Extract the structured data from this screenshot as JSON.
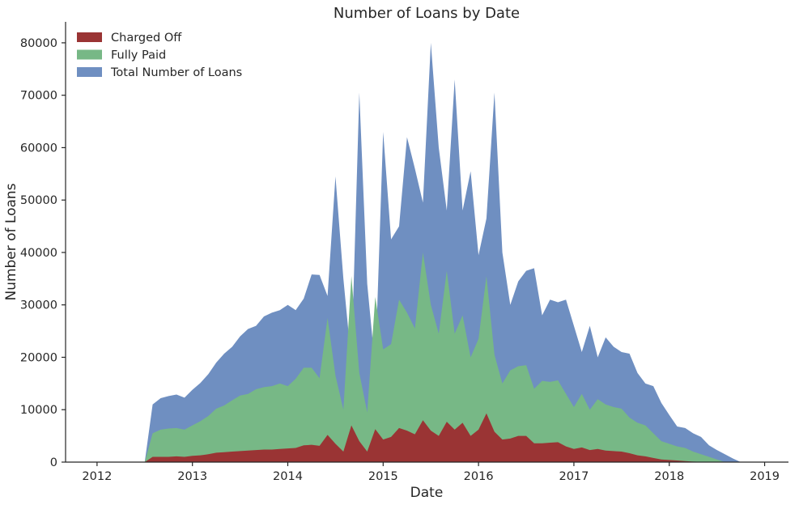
{
  "chart_data": {
    "type": "area",
    "title": "Number of Loans by Date",
    "xlabel": "Date",
    "ylabel": "Number of Loans",
    "xlim": [
      2011.67,
      2019.25
    ],
    "ylim": [
      0,
      84000
    ],
    "x_ticks": [
      "2012",
      "2013",
      "2014",
      "2015",
      "2016",
      "2017",
      "2018",
      "2019"
    ],
    "y_ticks": [
      "0",
      "10000",
      "20000",
      "30000",
      "40000",
      "50000",
      "60000",
      "70000",
      "80000"
    ],
    "grid": false,
    "legend_position": "top-left",
    "x": [
      2012.5,
      2012.583,
      2012.667,
      2012.75,
      2012.833,
      2012.917,
      2013.0,
      2013.083,
      2013.167,
      2013.25,
      2013.333,
      2013.417,
      2013.5,
      2013.583,
      2013.667,
      2013.75,
      2013.833,
      2013.917,
      2014.0,
      2014.083,
      2014.167,
      2014.25,
      2014.333,
      2014.417,
      2014.5,
      2014.583,
      2014.667,
      2014.75,
      2014.833,
      2014.917,
      2015.0,
      2015.083,
      2015.167,
      2015.25,
      2015.333,
      2015.417,
      2015.5,
      2015.583,
      2015.667,
      2015.75,
      2015.833,
      2015.917,
      2016.0,
      2016.083,
      2016.167,
      2016.25,
      2016.333,
      2016.417,
      2016.5,
      2016.583,
      2016.667,
      2016.75,
      2016.833,
      2016.917,
      2017.0,
      2017.083,
      2017.167,
      2017.25,
      2017.333,
      2017.417,
      2017.5,
      2017.583,
      2017.667,
      2017.75,
      2017.833,
      2017.917,
      2018.0,
      2018.083,
      2018.167,
      2018.25,
      2018.333,
      2018.417,
      2018.5,
      2018.583,
      2018.667,
      2018.75
    ],
    "series": [
      {
        "name": "Charged Off",
        "color": "#9a3434",
        "values": [
          0,
          1000,
          1000,
          1000,
          1100,
          1000,
          1200,
          1300,
          1500,
          1800,
          1900,
          2000,
          2100,
          2200,
          2300,
          2400,
          2400,
          2500,
          2600,
          2700,
          3200,
          3300,
          3100,
          5200,
          3500,
          2000,
          7000,
          4000,
          2000,
          6300,
          4300,
          4800,
          6500,
          6000,
          5300,
          8000,
          6000,
          5000,
          7700,
          6200,
          7500,
          5000,
          6200,
          9300,
          5800,
          4300,
          4500,
          5000,
          5000,
          3600,
          3600,
          3700,
          3800,
          3000,
          2500,
          2800,
          2300,
          2500,
          2200,
          2100,
          2000,
          1700,
          1300,
          1100,
          800,
          500,
          400,
          300,
          200,
          100,
          50,
          0,
          0,
          0,
          0,
          0
        ]
      },
      {
        "name": "Fully Paid",
        "color": "#77b886",
        "values": [
          0,
          5500,
          6200,
          6400,
          6500,
          6200,
          7000,
          7800,
          8800,
          10200,
          10800,
          11800,
          12700,
          13000,
          13900,
          14300,
          14500,
          15000,
          14500,
          15900,
          18000,
          18000,
          16000,
          27500,
          16500,
          10000,
          35500,
          17000,
          9500,
          31500,
          21500,
          22500,
          31000,
          28500,
          25500,
          40000,
          30000,
          24500,
          36500,
          24500,
          28000,
          20000,
          23500,
          35500,
          20500,
          15000,
          17500,
          18300,
          18500,
          14000,
          15500,
          15300,
          15600,
          13000,
          10500,
          13000,
          10000,
          12000,
          11000,
          10500,
          10200,
          8500,
          7500,
          7000,
          5500,
          4000,
          3500,
          3000,
          2700,
          2000,
          1500,
          1000,
          500,
          0,
          0,
          0
        ]
      },
      {
        "name": "Total Number of Loans",
        "color": "#6f8fc1",
        "values": [
          0,
          11000,
          12200,
          12600,
          12900,
          12300,
          13800,
          15100,
          16800,
          19000,
          20700,
          22000,
          24000,
          25400,
          26000,
          27800,
          28500,
          29000,
          30000,
          29000,
          31200,
          35800,
          35700,
          31700,
          54500,
          35000,
          19000,
          70500,
          34000,
          18000,
          63000,
          42500,
          45000,
          62000,
          56000,
          49500,
          80000,
          60000,
          48000,
          73000,
          48000,
          55500,
          39500,
          46500,
          70500,
          40000,
          30000,
          34500,
          36500,
          37000,
          28000,
          31000,
          30500,
          31000,
          26000,
          21000,
          26000,
          20000,
          23800,
          22000,
          21000,
          20700,
          17000,
          15000,
          14500,
          11300,
          9000,
          6800,
          6500,
          5500,
          4800,
          3200,
          2300,
          1500,
          700,
          0
        ]
      }
    ]
  }
}
